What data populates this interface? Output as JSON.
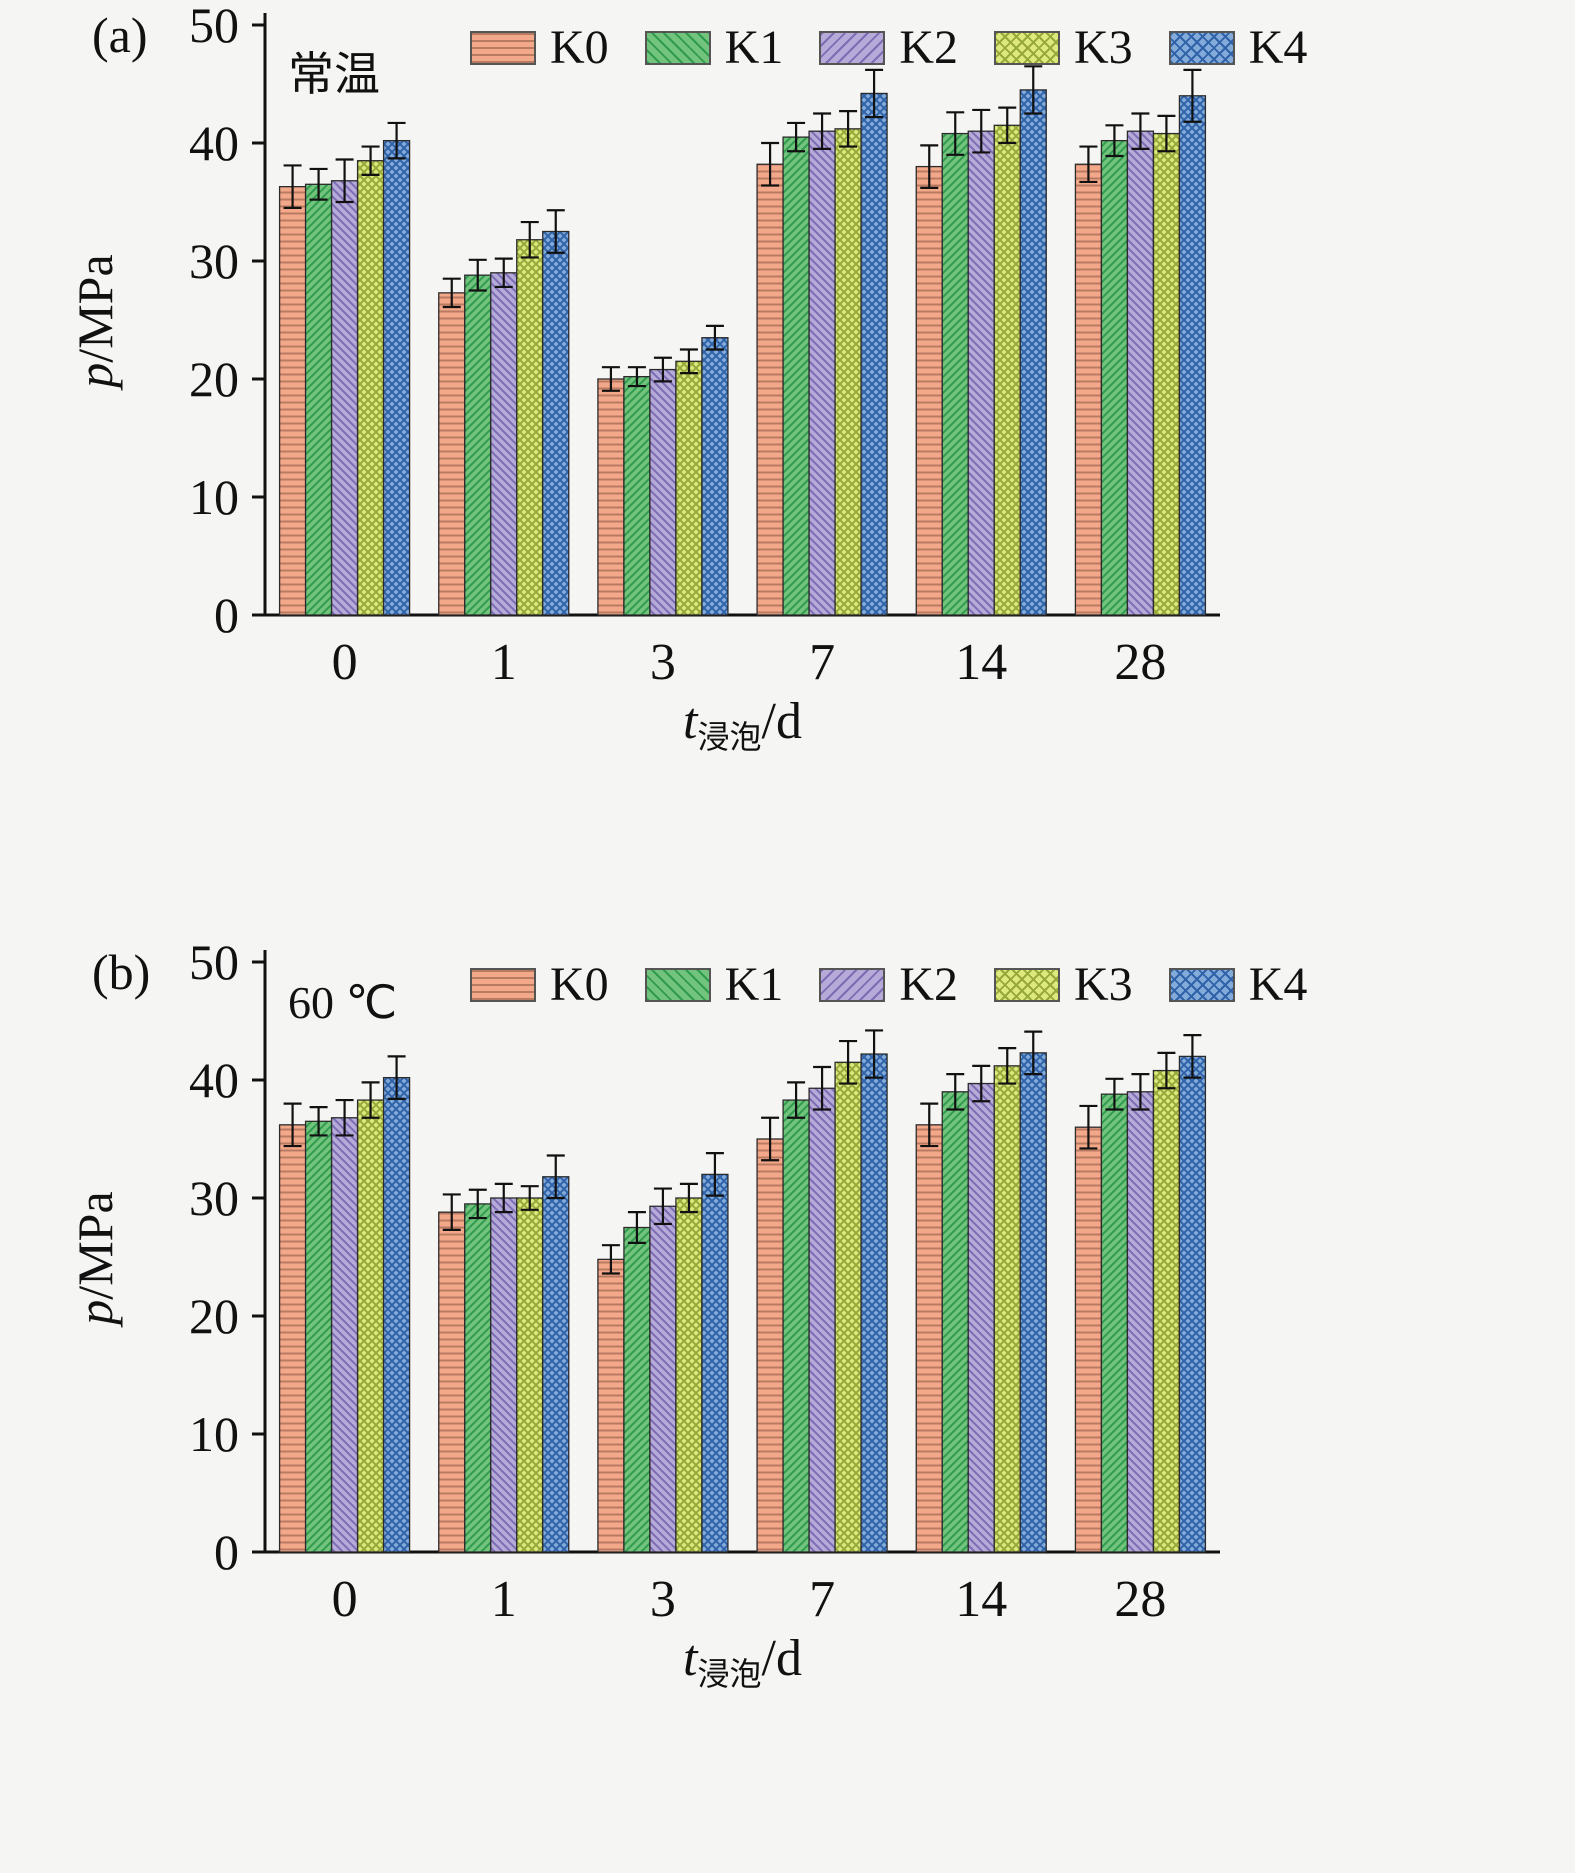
{
  "chart_data": [
    {
      "type": "bar",
      "panel_label": "(a)",
      "annotation": "常温",
      "ylabel_italic": "p",
      "ylabel_rest": "/MPa",
      "xlabel_italic": "t",
      "xlabel_sub": "浸泡",
      "xlabel_rest": "/d",
      "ylim": [
        0,
        50
      ],
      "yticks": [
        0,
        10,
        20,
        30,
        40,
        50
      ],
      "categories": [
        "0",
        "1",
        "3",
        "7",
        "14",
        "28"
      ],
      "legend_position": "top-inside",
      "grid": false,
      "series": [
        {
          "name": "K0",
          "fill": "#f4a88a",
          "hatch": "horizontal",
          "hatch_color": "#b97a62",
          "values": [
            36.3,
            27.3,
            20.0,
            38.2,
            38.0,
            38.2
          ],
          "errors": [
            1.8,
            1.2,
            1.0,
            1.8,
            1.8,
            1.5
          ]
        },
        {
          "name": "K1",
          "fill": "#72c47c",
          "hatch": "diag-up",
          "hatch_color": "#2f9a50",
          "values": [
            36.5,
            28.8,
            20.2,
            40.5,
            40.8,
            40.2
          ],
          "errors": [
            1.3,
            1.3,
            0.8,
            1.2,
            1.8,
            1.3
          ]
        },
        {
          "name": "K2",
          "fill": "#b6aad8",
          "hatch": "diag-down",
          "hatch_color": "#7c6cb4",
          "values": [
            36.8,
            29.0,
            20.8,
            41.0,
            41.0,
            41.0
          ],
          "errors": [
            1.8,
            1.2,
            1.0,
            1.5,
            1.8,
            1.5
          ]
        },
        {
          "name": "K3",
          "fill": "#dde97c",
          "hatch": "cross",
          "hatch_color": "#97a83b",
          "values": [
            38.5,
            31.8,
            21.5,
            41.2,
            41.5,
            40.8
          ],
          "errors": [
            1.2,
            1.5,
            1.0,
            1.5,
            1.5,
            1.5
          ]
        },
        {
          "name": "K4",
          "fill": "#83abda",
          "hatch": "cross",
          "hatch_color": "#2f62a8",
          "values": [
            40.2,
            32.5,
            23.5,
            44.2,
            44.5,
            44.0
          ],
          "errors": [
            1.5,
            1.8,
            1.0,
            2.0,
            2.0,
            2.2
          ]
        }
      ]
    },
    {
      "type": "bar",
      "panel_label": "(b)",
      "annotation": "60 ℃",
      "ylabel_italic": "p",
      "ylabel_rest": "/MPa",
      "xlabel_italic": "t",
      "xlabel_sub": "浸泡",
      "xlabel_rest": "/d",
      "ylim": [
        0,
        50
      ],
      "yticks": [
        0,
        10,
        20,
        30,
        40,
        50
      ],
      "categories": [
        "0",
        "1",
        "3",
        "7",
        "14",
        "28"
      ],
      "legend_position": "top-inside",
      "grid": false,
      "series": [
        {
          "name": "K0",
          "fill": "#f4a88a",
          "hatch": "horizontal",
          "hatch_color": "#b97a62",
          "values": [
            36.2,
            28.8,
            24.8,
            35.0,
            36.2,
            36.0
          ],
          "errors": [
            1.8,
            1.5,
            1.2,
            1.8,
            1.8,
            1.8
          ]
        },
        {
          "name": "K1",
          "fill": "#72c47c",
          "hatch": "diag-up",
          "hatch_color": "#2f9a50",
          "values": [
            36.5,
            29.5,
            27.5,
            38.3,
            39.0,
            38.8
          ],
          "errors": [
            1.2,
            1.2,
            1.3,
            1.5,
            1.5,
            1.3
          ]
        },
        {
          "name": "K2",
          "fill": "#b6aad8",
          "hatch": "diag-down",
          "hatch_color": "#7c6cb4",
          "values": [
            36.8,
            30.0,
            29.3,
            39.3,
            39.7,
            39.0
          ],
          "errors": [
            1.5,
            1.2,
            1.5,
            1.8,
            1.5,
            1.5
          ]
        },
        {
          "name": "K3",
          "fill": "#dde97c",
          "hatch": "cross",
          "hatch_color": "#97a83b",
          "values": [
            38.3,
            30.0,
            30.0,
            41.5,
            41.2,
            40.8
          ],
          "errors": [
            1.5,
            1.0,
            1.2,
            1.8,
            1.5,
            1.5
          ]
        },
        {
          "name": "K4",
          "fill": "#83abda",
          "hatch": "cross",
          "hatch_color": "#2f62a8",
          "values": [
            40.2,
            31.8,
            32.0,
            42.2,
            42.3,
            42.0
          ],
          "errors": [
            1.8,
            1.8,
            1.8,
            2.0,
            1.8,
            1.8
          ]
        }
      ]
    }
  ],
  "style": {
    "axis_color": "#111111",
    "bar_edge_color": "#2b2b2b",
    "error_bar_color": "#111111",
    "background": "#f5f5f3"
  }
}
